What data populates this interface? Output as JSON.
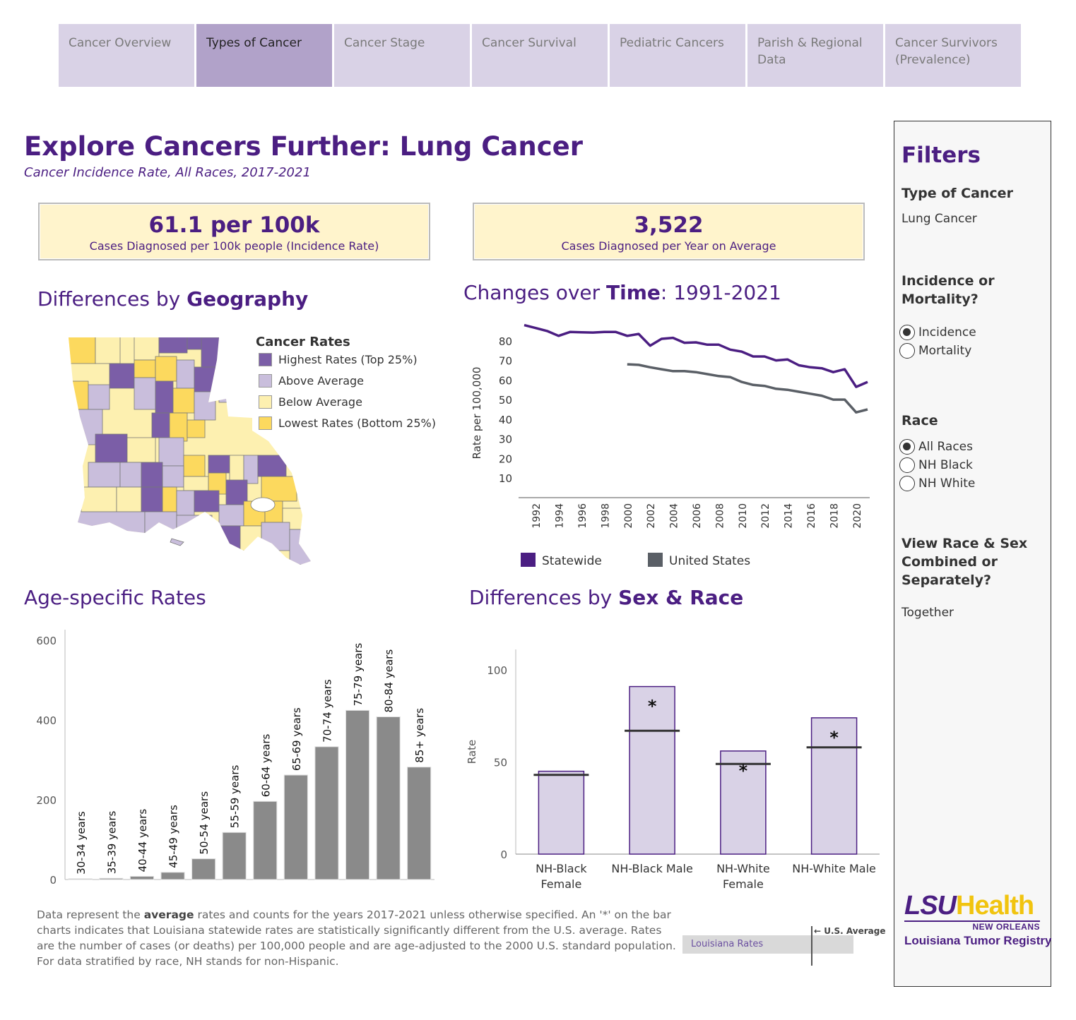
{
  "tabs": [
    {
      "label": "Cancer Overview",
      "active": false
    },
    {
      "label": "Types of Cancer",
      "active": true
    },
    {
      "label": "Cancer Stage",
      "active": false
    },
    {
      "label": "Cancer Survival",
      "active": false
    },
    {
      "label": "Pediatric Cancers",
      "active": false
    },
    {
      "label": "Parish & Regional Data",
      "active": false
    },
    {
      "label": "Cancer Survivors (Prevalence)",
      "active": false
    }
  ],
  "title": "Explore Cancers Further: Lung Cancer",
  "subtitle": "Cancer Incidence Rate, All Races, 2017-2021",
  "kpis": [
    {
      "value": "61.1 per 100k",
      "label": "Cases Diagnosed per 100k people (Incidence Rate)"
    },
    {
      "value": "3,522",
      "label": "Cases Diagnosed per Year on Average"
    }
  ],
  "sections": {
    "geo_prefix": "Differences by ",
    "geo_bold": "Geography",
    "time_prefix": "Changes over ",
    "time_bold": "Time",
    "time_suffix": ": 1991-2021",
    "age": "Age-specific Rates",
    "sex_prefix": "Differences by ",
    "sex_bold": "Sex & Race"
  },
  "map_legend": {
    "title": "Cancer Rates",
    "items": [
      {
        "label": "Highest Rates (Top 25%)",
        "color": "#7b5ea7"
      },
      {
        "label": "Above Average",
        "color": "#c9bedc"
      },
      {
        "label": "Below Average",
        "color": "#fdf0b0"
      },
      {
        "label": "Lowest Rates (Bottom 25%)",
        "color": "#fcd95e"
      }
    ]
  },
  "colors": {
    "purple": "#4b1e82",
    "statewide": "#4b1e82",
    "us": "#5a5f66",
    "age_bar": "#8a8a8a",
    "sex_bar": "#d9d2e6"
  },
  "chart_data": [
    {
      "type": "line",
      "title": "Changes over Time: 1991-2021",
      "xlabel": "",
      "ylabel": "Rate per 100,000",
      "ylim": [
        0,
        90
      ],
      "y_ticks": [
        10,
        20,
        30,
        40,
        50,
        60,
        70,
        80
      ],
      "x_ticks": [
        1992,
        1994,
        1996,
        1998,
        2000,
        2002,
        2004,
        2006,
        2008,
        2010,
        2012,
        2014,
        2016,
        2018,
        2020
      ],
      "series": [
        {
          "name": "Statewide",
          "x": [
            1991,
            1992,
            1993,
            1994,
            1995,
            1996,
            1997,
            1998,
            1999,
            2000,
            2001,
            2002,
            2003,
            2004,
            2005,
            2006,
            2007,
            2008,
            2009,
            2010,
            2011,
            2012,
            2013,
            2014,
            2015,
            2016,
            2017,
            2018,
            2019,
            2020,
            2021
          ],
          "values": [
            88,
            86.5,
            85,
            82.5,
            84.5,
            84.3,
            84.2,
            84.5,
            84.5,
            82.5,
            83.5,
            77.5,
            81,
            81.5,
            79,
            79.2,
            78,
            78,
            75.5,
            74.5,
            72,
            72,
            70,
            70.5,
            67.5,
            66.5,
            66,
            64,
            65.5,
            56.5,
            59
          ]
        },
        {
          "name": "United States",
          "x": [
            2000,
            2001,
            2002,
            2003,
            2004,
            2005,
            2006,
            2007,
            2008,
            2009,
            2010,
            2011,
            2012,
            2013,
            2014,
            2015,
            2016,
            2017,
            2018,
            2019,
            2020,
            2021
          ],
          "values": [
            68,
            67.7,
            66.5,
            65.5,
            64.5,
            64.5,
            64,
            63,
            62,
            61.5,
            59,
            57.5,
            57,
            55.5,
            55,
            54,
            53,
            52,
            50,
            50,
            43.5,
            45
          ]
        }
      ]
    },
    {
      "type": "bar",
      "title": "Age-specific Rates",
      "categories": [
        "30-34 years",
        "35-39 years",
        "40-44 years",
        "45-49 years",
        "50-54 years",
        "55-59 years",
        "60-64 years",
        "65-69 years",
        "70-74 years",
        "75-79 years",
        "80-84 years",
        "85+ years"
      ],
      "values": [
        2,
        3,
        8,
        18,
        52,
        118,
        196,
        262,
        333,
        424,
        408,
        282
      ],
      "ylim": [
        0,
        610
      ],
      "y_ticks": [
        0,
        200,
        400,
        600
      ]
    },
    {
      "type": "bar",
      "title": "Differences by Sex & Race",
      "ylabel": "Rate",
      "categories": [
        "NH-Black Female",
        "NH-Black Male",
        "NH-White Female",
        "NH-White Male"
      ],
      "values": [
        45,
        91,
        56,
        74
      ],
      "us_average": [
        43,
        67,
        49,
        58
      ],
      "significant": [
        "",
        "*",
        "*",
        "*"
      ],
      "ylim": [
        0,
        110
      ],
      "y_ticks": [
        0,
        50,
        100
      ]
    }
  ],
  "footnote": {
    "p1_a": "Data represent the ",
    "p1_b": "average",
    "p1_c": " rates and counts for the years 2017-2021 unless otherwise specified. An '*' on the bar charts indicates that Louisiana statewide rates are statistically significantly different from the U.S. average. Rates are the number of cases (or deaths) per 100,000 people and are age-adjusted to the 2000 U.S. standard population.",
    "p2": "For data stratified by race, NH stands for non-Hispanic."
  },
  "key_graphic": {
    "bar_label": "Louisiana Rates",
    "marker_label": "U.S. Average"
  },
  "filters": {
    "title": "Filters",
    "type_label": "Type of Cancer",
    "type_value": "Lung Cancer",
    "measure_label": "Incidence or Mortality?",
    "measure_options": [
      {
        "label": "Incidence",
        "checked": true
      },
      {
        "label": "Mortality",
        "checked": false
      }
    ],
    "race_label": "Race",
    "race_options": [
      {
        "label": "All Races",
        "checked": true
      },
      {
        "label": "NH Black",
        "checked": false
      },
      {
        "label": "NH White",
        "checked": false
      }
    ],
    "view_label": "View Race & Sex Combined or Separately?",
    "view_value": "Together"
  },
  "logo": {
    "brand_a": "LSU",
    "brand_b": "Health",
    "city": "NEW ORLEANS",
    "org": "Louisiana Tumor Registry"
  }
}
